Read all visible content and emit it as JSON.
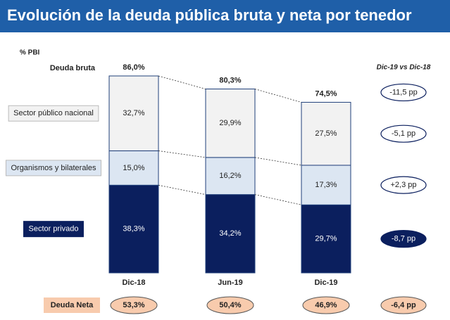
{
  "chart_data": {
    "type": "bar",
    "stacked": true,
    "title": "Evolución de la deuda pública bruta y neta por tenedor",
    "y_label": "% PBI",
    "categories": [
      "Dic-18",
      "Jun-19",
      "Dic-19"
    ],
    "ylim": [
      0,
      100
    ],
    "series": [
      {
        "name": "Sector privado",
        "color": "#0b1f5e",
        "values": [
          38.3,
          34.2,
          29.7
        ],
        "value_labels": [
          "38,3%",
          "34,2%",
          "29,7%"
        ],
        "change": -8.7,
        "change_label": "-8,7 pp"
      },
      {
        "name": "Organismos y bilaterales",
        "color": "#dce6f2",
        "values": [
          15.0,
          16.2,
          17.3
        ],
        "value_labels": [
          "15,0%",
          "16,2%",
          "17,3%"
        ],
        "change": 2.3,
        "change_label": "+2,3 pp"
      },
      {
        "name": "Sector público nacional",
        "color": "#f2f2f2",
        "values": [
          32.7,
          29.9,
          27.5
        ],
        "value_labels": [
          "32,7%",
          "29,9%",
          "27,5%"
        ],
        "change": -5.1,
        "change_label": "-5,1 pp"
      }
    ],
    "totals": {
      "name": "Deuda bruta",
      "values": [
        86.0,
        80.3,
        74.5
      ],
      "value_labels": [
        "86,0%",
        "80,3%",
        "74,5%"
      ],
      "change": -11.5,
      "change_label": "-11,5 pp"
    },
    "net_debt": {
      "name": "Deuda Neta",
      "color": "#f8cbad",
      "values": [
        53.3,
        50.4,
        46.9
      ],
      "value_labels": [
        "53,3%",
        "50,4%",
        "46,9%"
      ],
      "change": -6.4,
      "change_label": "-6,4 pp"
    },
    "change_title": "Dic-19 vs Dic-18"
  }
}
